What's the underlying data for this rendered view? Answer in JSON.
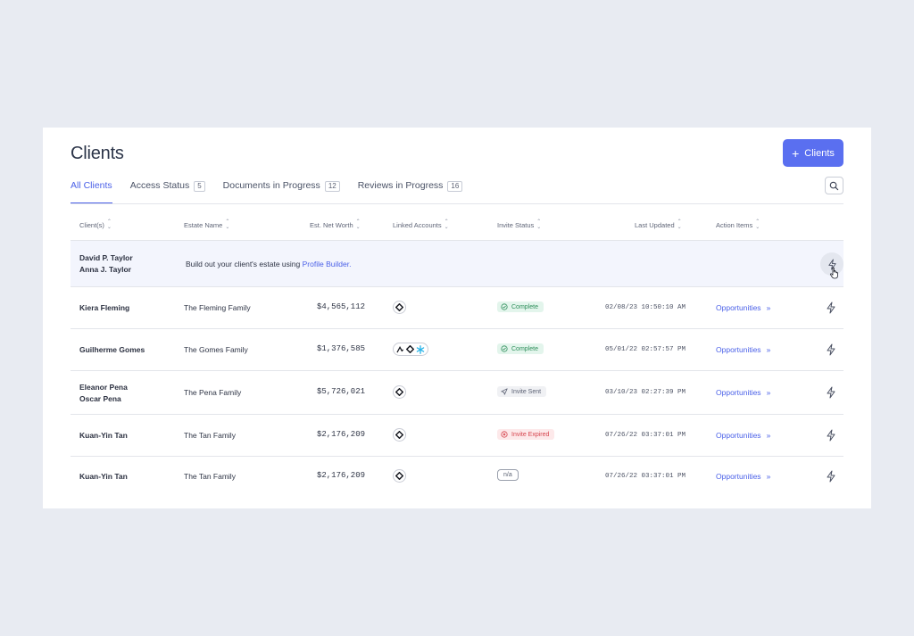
{
  "header": {
    "title": "Clients",
    "add_button_label": "Clients"
  },
  "tabs": [
    {
      "label": "All Clients",
      "count": ""
    },
    {
      "label": "Access Status",
      "count": "5"
    },
    {
      "label": "Documents in Progress",
      "count": "12"
    },
    {
      "label": "Reviews in Progress",
      "count": "16"
    }
  ],
  "columns": {
    "clients": "Client(s)",
    "estate": "Estate Name",
    "networth": "Est. Net Worth",
    "accounts": "Linked Accounts",
    "invite": "Invite Status",
    "updated": "Last Updated",
    "action": "Action Items"
  },
  "prompt_row": {
    "client_line1": "David P. Taylor",
    "client_line2": "Anna J. Taylor",
    "text": "Build out your client's estate using ",
    "link": "Profile Builder."
  },
  "rows": [
    {
      "client_line1": "Kiera Fleming",
      "client_line2": "",
      "estate": "The Fleming Family",
      "networth": "$4,565,112",
      "invite": "Complete",
      "invite_type": "complete",
      "updated": "02/08/23 10:50:10 AM",
      "action": "Opportunities",
      "action_arrow": "»"
    },
    {
      "client_line1": "Guilherme Gomes",
      "client_line2": "",
      "estate": "The Gomes Family",
      "networth": "$1,376,585",
      "invite": "Complete",
      "invite_type": "complete",
      "updated": "05/01/22 02:57:57 PM",
      "action": "Opportunities",
      "action_arrow": "»"
    },
    {
      "client_line1": "Eleanor Pena",
      "client_line2": "Oscar Pena",
      "estate": "The Pena Family",
      "networth": "$5,726,021",
      "invite": "Invite Sent",
      "invite_type": "sent",
      "updated": "03/10/23 02:27:39 PM",
      "action": "Opportunities",
      "action_arrow": "»"
    },
    {
      "client_line1": "Kuan-Yin Tan",
      "client_line2": "",
      "estate": "The Tan Family",
      "networth": "$2,176,209",
      "invite": "Invite Expired",
      "invite_type": "expired",
      "updated": "07/26/22 03:37:01 PM",
      "action": "Opportunities",
      "action_arrow": "»"
    },
    {
      "client_line1": "Kuan-Yin Tan",
      "client_line2": "",
      "estate": "The Tan Family",
      "networth": "$2,176,209",
      "invite": "n/a",
      "invite_type": "na",
      "updated": "07/26/22 03:37:01 PM",
      "action": "Opportunities",
      "action_arrow": "»"
    }
  ],
  "colors": {
    "accent": "#5a6ff0",
    "complete": "#2f8f5b",
    "expired": "#d6454e"
  }
}
